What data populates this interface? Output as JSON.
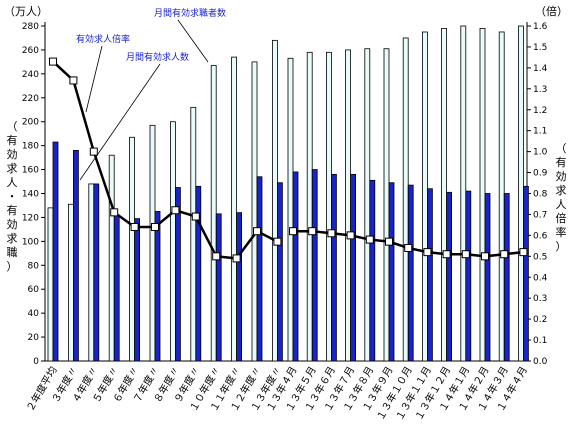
{
  "chart_data": {
    "type": "bar",
    "left_unit": "（万人）",
    "right_unit": "（倍）",
    "left_axis_label_chars": [
      "（",
      "有",
      "効",
      "求",
      "人",
      "・",
      "有",
      "効",
      "求",
      "職",
      "）"
    ],
    "right_axis_label_chars": [
      "（",
      "有",
      "効",
      "求",
      "人",
      "倍",
      "率",
      "）"
    ],
    "left_ticks": [
      "0",
      "20",
      "40",
      "60",
      "80",
      "100",
      "120",
      "140",
      "160",
      "180",
      "200",
      "220",
      "240",
      "260",
      "280"
    ],
    "right_ticks": [
      "0.0",
      "0.1",
      "0.2",
      "0.3",
      "0.4",
      "0.5",
      "0.6",
      "0.7",
      "0.8",
      "0.9",
      "1.0",
      "1.1",
      "1.2",
      "1.3",
      "1.4",
      "1.5",
      "1.6"
    ],
    "ylim_left": [
      0,
      280
    ],
    "ylim_right": [
      0,
      1.6
    ],
    "annotations": {
      "ratio": "有効求人倍率",
      "seekers": "月間有効求職者数",
      "offers": "月間有効求人数"
    },
    "annual": {
      "categories": [
        "２年度平均",
        "３年度〃",
        "４年度〃",
        "５年度〃",
        "６年度〃",
        "７年度〃",
        "８年度〃",
        "９年度〃",
        "１０年度〃",
        "１１年度〃",
        "１２年度〃",
        "１３年度〃"
      ],
      "seekers": [
        128,
        131,
        148,
        172,
        187,
        197,
        200,
        212,
        247,
        254,
        250,
        268
      ],
      "offers": [
        183,
        176,
        148,
        122,
        119,
        125,
        145,
        146,
        123,
        124,
        154,
        149
      ],
      "ratio": [
        1.43,
        1.34,
        1.0,
        0.71,
        0.64,
        0.64,
        0.72,
        0.69,
        0.5,
        0.49,
        0.62,
        0.57
      ]
    },
    "monthly": {
      "categories": [
        "１３年４月",
        "１３年５月",
        "１３年６月",
        "１３年７月",
        "１３年８月",
        "１３年９月",
        "１３年１０月",
        "１３年１１月",
        "１３年１２月",
        "１４年１月",
        "１４年２月",
        "１４年３月",
        "１４年４月"
      ],
      "seekers": [
        253,
        258,
        258,
        260,
        261,
        261,
        270,
        275,
        278,
        280,
        278,
        275,
        280
      ],
      "offers": [
        158,
        160,
        156,
        156,
        151,
        149,
        147,
        144,
        141,
        142,
        140,
        140,
        146
      ],
      "ratio": [
        0.62,
        0.62,
        0.61,
        0.6,
        0.58,
        0.57,
        0.54,
        0.52,
        0.51,
        0.51,
        0.5,
        0.51,
        0.52
      ]
    },
    "series": [
      {
        "key": "seekers",
        "color": "#e8fbfb",
        "stroke": "#000000"
      },
      {
        "key": "offers",
        "color": "#1a23c8",
        "stroke": "#000000"
      },
      {
        "key": "ratio",
        "color": "#000000"
      }
    ],
    "grid": false
  }
}
